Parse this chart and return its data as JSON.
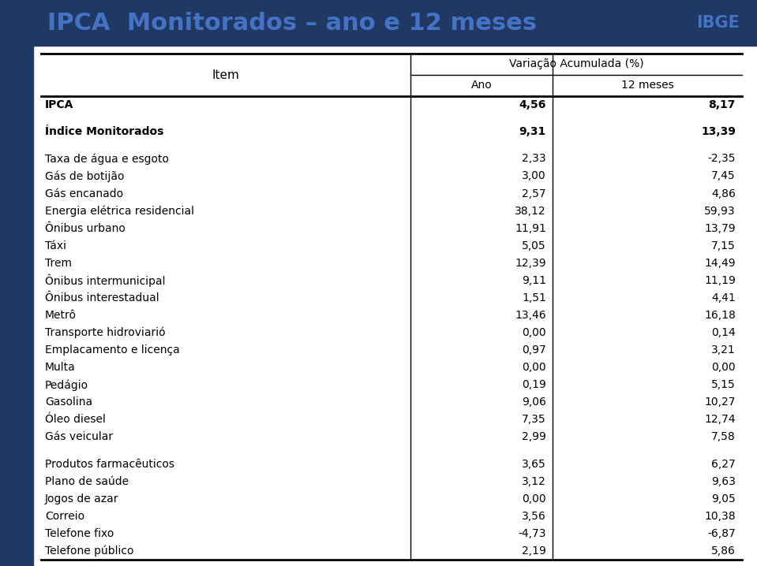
{
  "title": "IPCA  Monitorados – ano e 12 meses",
  "title_color": "#4472C4",
  "header_bg": "#1F3864",
  "col_header_main": "Variação Acumulada (%)",
  "col_header_ano": "Ano",
  "col_header_12meses": "12 meses",
  "col_item": "Item",
  "rows": [
    {
      "item": "IPCA",
      "ano": "4,56",
      "meses": "8,17",
      "bold": true,
      "gap_after": true
    },
    {
      "item": "Índice Monitorados",
      "ano": "9,31",
      "meses": "13,39",
      "bold": true,
      "gap_after": true
    },
    {
      "item": "Taxa de água e esgoto",
      "ano": "2,33",
      "meses": "-2,35",
      "bold": false,
      "gap_after": false
    },
    {
      "item": "Gás de botijão",
      "ano": "3,00",
      "meses": "7,45",
      "bold": false,
      "gap_after": false
    },
    {
      "item": "Gás encanado",
      "ano": "2,57",
      "meses": "4,86",
      "bold": false,
      "gap_after": false
    },
    {
      "item": "Energia elétrica residencial",
      "ano": "38,12",
      "meses": "59,93",
      "bold": false,
      "gap_after": false
    },
    {
      "item": "Ônibus urbano",
      "ano": "11,91",
      "meses": "13,79",
      "bold": false,
      "gap_after": false
    },
    {
      "item": "Táxi",
      "ano": "5,05",
      "meses": "7,15",
      "bold": false,
      "gap_after": false
    },
    {
      "item": "Trem",
      "ano": "12,39",
      "meses": "14,49",
      "bold": false,
      "gap_after": false
    },
    {
      "item": "Ônibus intermunicipal",
      "ano": "9,11",
      "meses": "11,19",
      "bold": false,
      "gap_after": false
    },
    {
      "item": "Ônibus interestadual",
      "ano": "1,51",
      "meses": "4,41",
      "bold": false,
      "gap_after": false
    },
    {
      "item": "Metrô",
      "ano": "13,46",
      "meses": "16,18",
      "bold": false,
      "gap_after": false
    },
    {
      "item": "Transporte hidroviarió",
      "ano": "0,00",
      "meses": "0,14",
      "bold": false,
      "gap_after": false
    },
    {
      "item": "Emplacamento e licença",
      "ano": "0,97",
      "meses": "3,21",
      "bold": false,
      "gap_after": false
    },
    {
      "item": "Multa",
      "ano": "0,00",
      "meses": "0,00",
      "bold": false,
      "gap_after": false
    },
    {
      "item": "Pedágio",
      "ano": "0,19",
      "meses": "5,15",
      "bold": false,
      "gap_after": false
    },
    {
      "item": "Gasolina",
      "ano": "9,06",
      "meses": "10,27",
      "bold": false,
      "gap_after": false
    },
    {
      "item": "Óleo diesel",
      "ano": "7,35",
      "meses": "12,74",
      "bold": false,
      "gap_after": false
    },
    {
      "item": "Gás veicular",
      "ano": "2,99",
      "meses": "7,58",
      "bold": false,
      "gap_after": true
    },
    {
      "item": "Produtos farmacêuticos",
      "ano": "3,65",
      "meses": "6,27",
      "bold": false,
      "gap_after": false
    },
    {
      "item": "Plano de saúde",
      "ano": "3,12",
      "meses": "9,63",
      "bold": false,
      "gap_after": false
    },
    {
      "item": "Jogos de azar",
      "ano": "0,00",
      "meses": "9,05",
      "bold": false,
      "gap_after": false
    },
    {
      "item": "Correio",
      "ano": "3,56",
      "meses": "10,38",
      "bold": false,
      "gap_after": false
    },
    {
      "item": "Telefone fixo",
      "ano": "-4,73",
      "meses": "-6,87",
      "bold": false,
      "gap_after": false
    },
    {
      "item": "Telefone público",
      "ano": "2,19",
      "meses": "5,86",
      "bold": false,
      "gap_after": false
    }
  ],
  "sidebar_color": "#1F3864",
  "line_color": "#000000",
  "text_color": "#000000",
  "bg_color": "#FFFFFF",
  "header_line_color": "#000000"
}
